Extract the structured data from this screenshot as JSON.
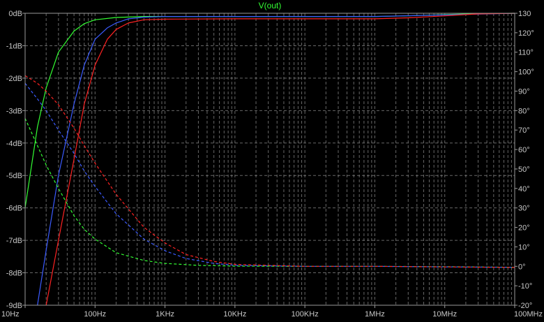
{
  "chart_data": {
    "type": "line",
    "title": "V(out)",
    "title_color": "#33ff33",
    "x_scale": "log",
    "xlim": [
      10,
      100000000
    ],
    "x_tick_labels": [
      "10Hz",
      "100Hz",
      "1KHz",
      "10KHz",
      "100KHz",
      "1MHz",
      "10MHz",
      "100MHz"
    ],
    "x_tick_values": [
      10,
      100,
      1000,
      10000,
      100000,
      1000000,
      10000000,
      100000000
    ],
    "y_left": {
      "unit": "dB",
      "ylim": [
        -9,
        0
      ],
      "tick_labels": [
        "0dB",
        "-1dB",
        "-2dB",
        "-3dB",
        "-4dB",
        "-5dB",
        "-6dB",
        "-7dB",
        "-8dB",
        "-9dB"
      ],
      "tick_values": [
        0,
        -1,
        -2,
        -3,
        -4,
        -5,
        -6,
        -7,
        -8,
        -9
      ]
    },
    "y_right": {
      "unit": "°",
      "ylim": [
        -20,
        130
      ],
      "tick_labels": [
        "130",
        "120°",
        "110°",
        "100°",
        "90°",
        "80°",
        "70°",
        "60°",
        "50°",
        "40°",
        "30°",
        "20°",
        "10°",
        "0°",
        "-10°",
        "-20°"
      ],
      "tick_values": [
        130,
        120,
        110,
        100,
        90,
        80,
        70,
        60,
        50,
        40,
        30,
        20,
        10,
        0,
        -10,
        -20
      ]
    },
    "grid": true,
    "series": [
      {
        "axis": "left",
        "style": "solid",
        "color": "#33ff33",
        "points": [
          [
            10,
            -6.0
          ],
          [
            15,
            -3.5
          ],
          [
            20,
            -2.3
          ],
          [
            30,
            -1.2
          ],
          [
            50,
            -0.55
          ],
          [
            70,
            -0.32
          ],
          [
            100,
            -0.2
          ],
          [
            200,
            -0.13
          ],
          [
            500,
            -0.1
          ],
          [
            1000,
            -0.1
          ],
          [
            10000,
            -0.1
          ],
          [
            100000,
            -0.1
          ],
          [
            1000000,
            -0.1
          ],
          [
            3000000,
            -0.08
          ],
          [
            10000000,
            -0.04
          ],
          [
            30000000,
            -0.01
          ],
          [
            100000000,
            0
          ]
        ]
      },
      {
        "axis": "left",
        "style": "solid",
        "color": "#3b5bff",
        "points": [
          [
            15,
            -9.0
          ],
          [
            20,
            -7.3
          ],
          [
            30,
            -5.0
          ],
          [
            50,
            -2.8
          ],
          [
            70,
            -1.6
          ],
          [
            100,
            -0.8
          ],
          [
            150,
            -0.45
          ],
          [
            200,
            -0.3
          ],
          [
            300,
            -0.17
          ],
          [
            500,
            -0.12
          ],
          [
            1000,
            -0.1
          ],
          [
            10000,
            -0.1
          ],
          [
            1000000,
            -0.1
          ],
          [
            10000000,
            -0.05
          ],
          [
            100000000,
            0
          ]
        ]
      },
      {
        "axis": "left",
        "style": "solid",
        "color": "#ff2222",
        "points": [
          [
            20,
            -9.0
          ],
          [
            30,
            -7.0
          ],
          [
            50,
            -4.5
          ],
          [
            70,
            -2.8
          ],
          [
            100,
            -1.6
          ],
          [
            150,
            -0.8
          ],
          [
            200,
            -0.5
          ],
          [
            300,
            -0.3
          ],
          [
            500,
            -0.2
          ],
          [
            1000,
            -0.18
          ],
          [
            10000,
            -0.17
          ],
          [
            100000,
            -0.17
          ],
          [
            1000000,
            -0.17
          ],
          [
            3000000,
            -0.14
          ],
          [
            10000000,
            -0.08
          ],
          [
            30000000,
            -0.02
          ],
          [
            100000000,
            0
          ]
        ]
      },
      {
        "axis": "right",
        "style": "dashed",
        "color": "#33ff33",
        "points": [
          [
            10,
            76
          ],
          [
            15,
            62
          ],
          [
            20,
            52
          ],
          [
            30,
            40
          ],
          [
            50,
            26
          ],
          [
            70,
            19
          ],
          [
            100,
            14
          ],
          [
            200,
            7
          ],
          [
            500,
            3
          ],
          [
            1000,
            1.5
          ],
          [
            3000,
            0.5
          ],
          [
            10000,
            0.1
          ],
          [
            100000,
            0
          ],
          [
            1000000,
            0
          ],
          [
            10000000,
            -0.2
          ],
          [
            100000000,
            -0.5
          ]
        ]
      },
      {
        "axis": "right",
        "style": "dashed",
        "color": "#3b5bff",
        "points": [
          [
            10,
            94
          ],
          [
            15,
            86
          ],
          [
            20,
            80
          ],
          [
            30,
            70
          ],
          [
            50,
            58
          ],
          [
            70,
            49
          ],
          [
            100,
            41
          ],
          [
            200,
            27
          ],
          [
            500,
            14
          ],
          [
            1000,
            8
          ],
          [
            2000,
            4
          ],
          [
            5000,
            1.5
          ],
          [
            10000,
            0.5
          ],
          [
            100000,
            0
          ],
          [
            1000000,
            0
          ],
          [
            10000000,
            -0.3
          ],
          [
            100000000,
            -0.5
          ]
        ]
      },
      {
        "axis": "right",
        "style": "dashed",
        "color": "#ff2222",
        "points": [
          [
            10,
            98
          ],
          [
            15,
            94
          ],
          [
            20,
            90
          ],
          [
            30,
            83
          ],
          [
            50,
            71
          ],
          [
            70,
            62
          ],
          [
            100,
            53
          ],
          [
            200,
            37
          ],
          [
            500,
            20
          ],
          [
            1000,
            12
          ],
          [
            2000,
            6
          ],
          [
            5000,
            2.5
          ],
          [
            10000,
            1
          ],
          [
            100000,
            0
          ],
          [
            1000000,
            0
          ],
          [
            10000000,
            -0.3
          ],
          [
            100000000,
            -0.6
          ]
        ]
      }
    ]
  }
}
